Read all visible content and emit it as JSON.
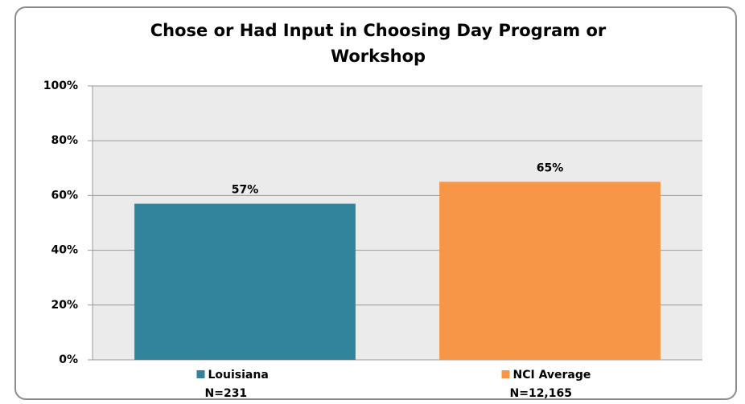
{
  "chart_data": {
    "type": "bar",
    "title": "Chose or Had Input in Choosing Day Program or Workshop",
    "categories": [
      "Louisiana",
      "NCI Average"
    ],
    "sample_sizes": [
      "N=231",
      "N=12,165"
    ],
    "values": [
      57,
      65
    ],
    "value_labels": [
      "57%",
      "65%"
    ],
    "colors": [
      "#31849b",
      "#f79646"
    ],
    "ylim": [
      0,
      100
    ],
    "yticks": [
      {
        "value": 0,
        "label": "0%"
      },
      {
        "value": 20,
        "label": "20%"
      },
      {
        "value": 40,
        "label": "40%"
      },
      {
        "value": 60,
        "label": "60%"
      },
      {
        "value": 80,
        "label": "80%"
      },
      {
        "value": 100,
        "label": "100%"
      }
    ],
    "grid": true
  }
}
